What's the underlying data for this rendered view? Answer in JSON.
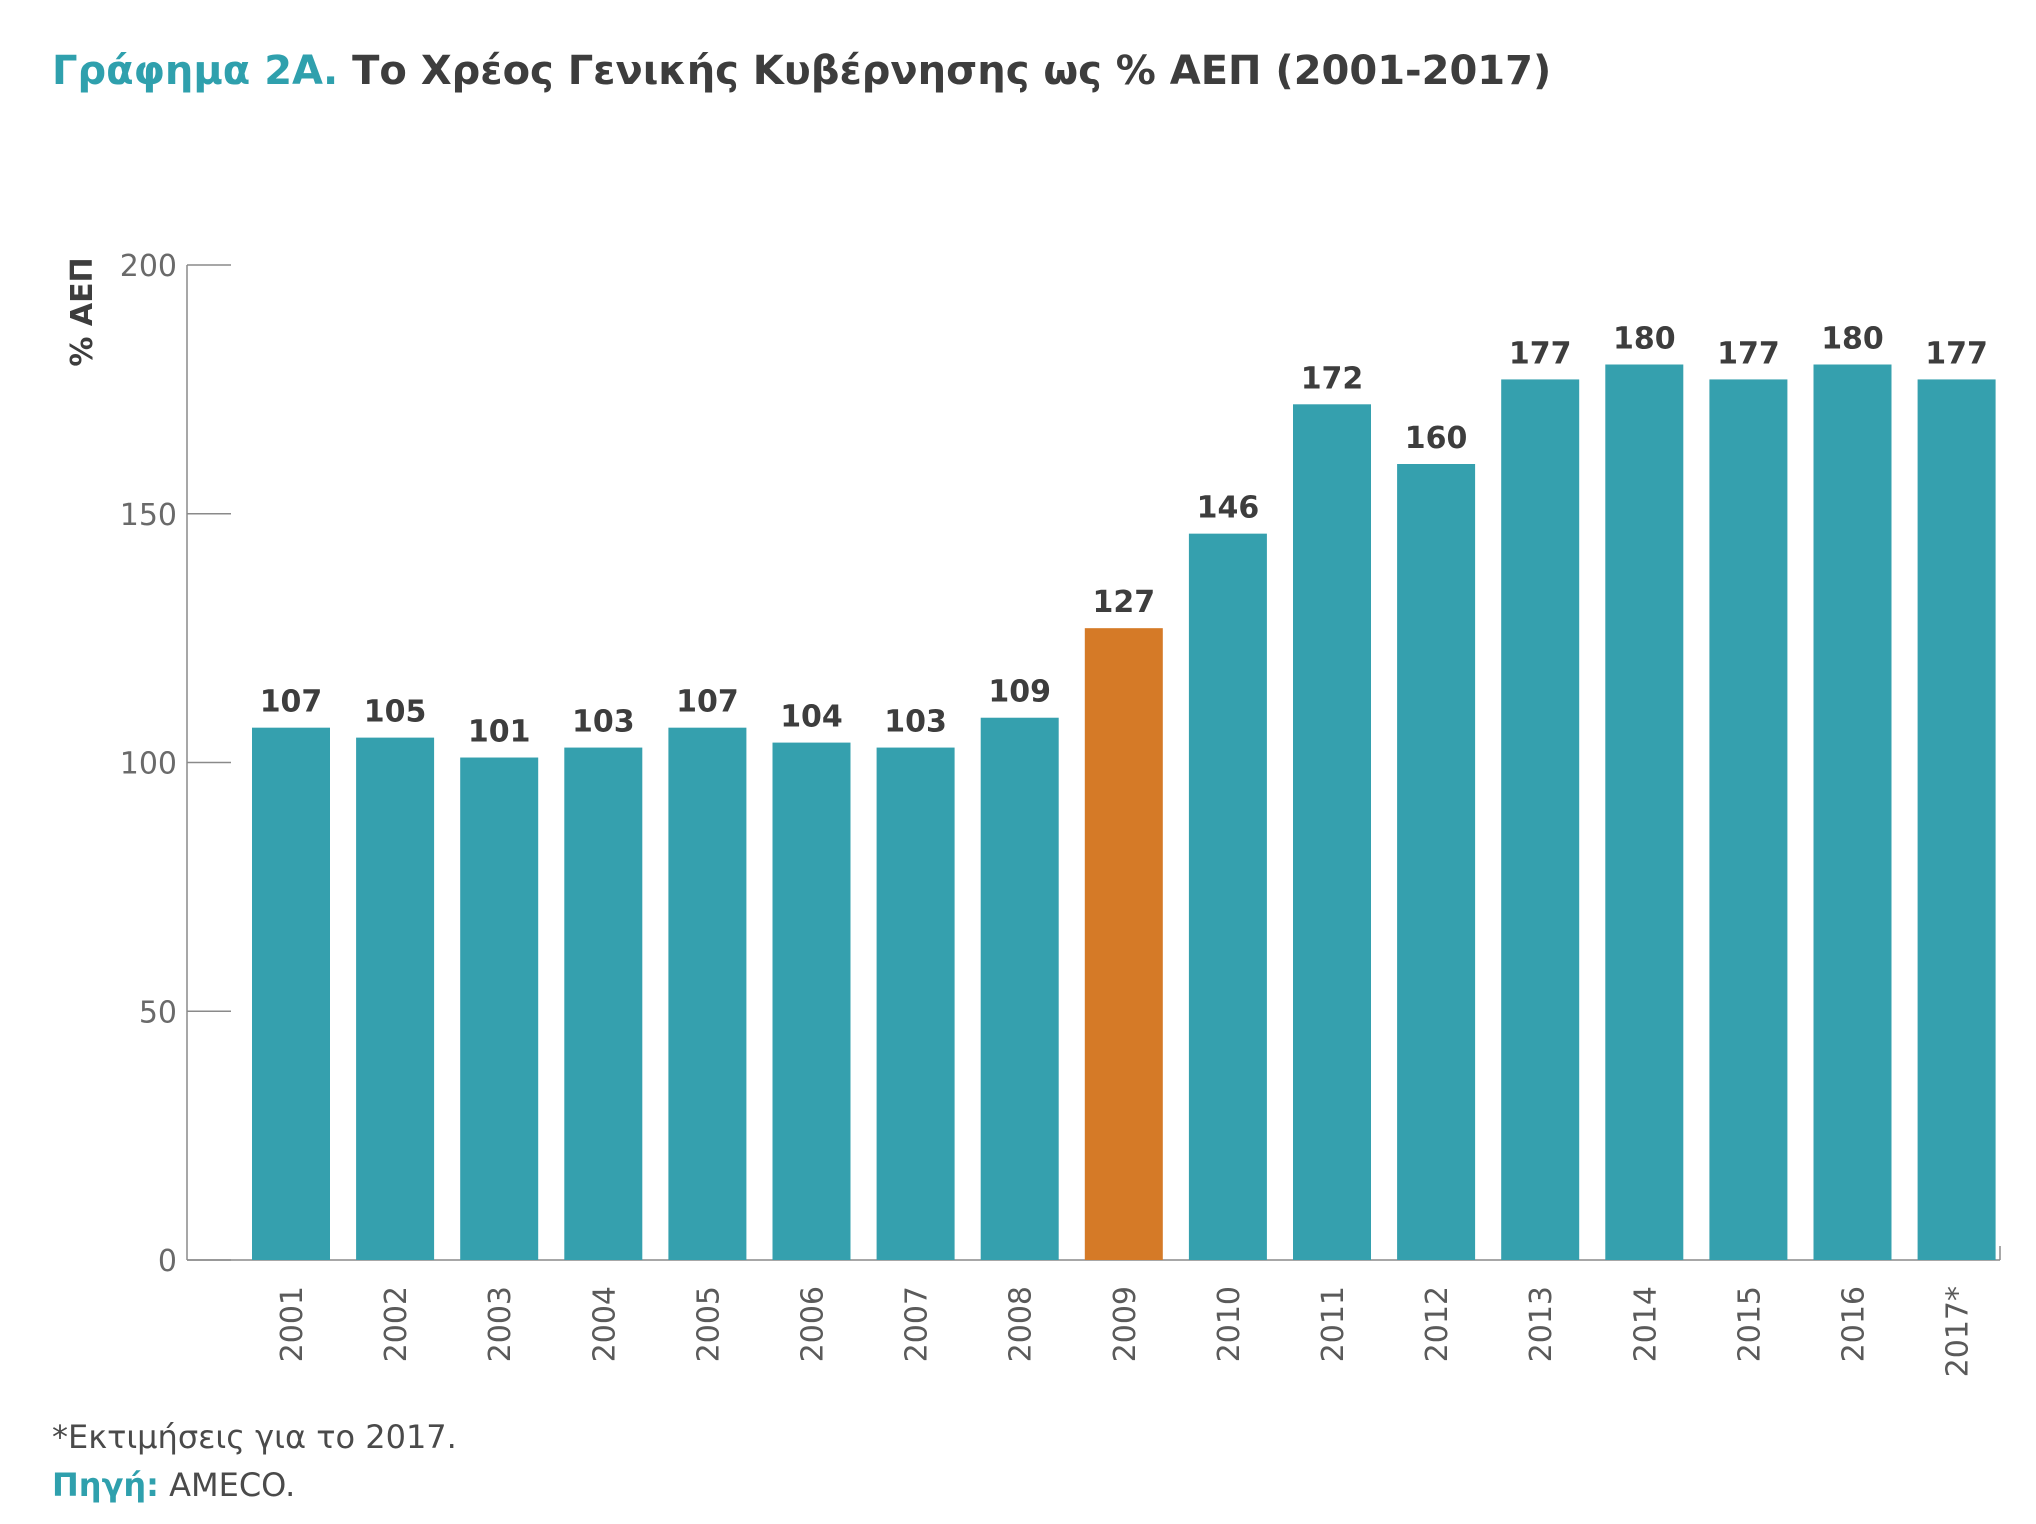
{
  "title": {
    "prefix": "Γράφημα 2Α.",
    "text": "Το Χρέος Γενικής Κυβέρνησης ως % ΑΕΠ (2001-2017)"
  },
  "footnote": "*Εκτιμήσεις για το 2017.",
  "source": {
    "label": "Πηγή:",
    "value": "AMECO."
  },
  "colors": {
    "bar": "#35a0ae",
    "highlight": "#d57a27",
    "axis": "#8a8a8a",
    "text": "#3d3d3d"
  },
  "chart_data": {
    "type": "bar",
    "title": "Το Χρέος Γενικής Κυβέρνησης ως % ΑΕΠ (2001-2017)",
    "ylabel": "% ΑΕΠ",
    "xlabel": "",
    "ylim": [
      0,
      200
    ],
    "yticks": [
      0,
      50,
      100,
      150,
      200
    ],
    "grid": false,
    "categories": [
      "2001",
      "2002",
      "2003",
      "2004",
      "2005",
      "2006",
      "2007",
      "2008",
      "2009",
      "2010",
      "2011",
      "2012",
      "2013",
      "2014",
      "2015",
      "2016",
      "2017*"
    ],
    "values": [
      107,
      105,
      101,
      103,
      107,
      104,
      103,
      109,
      127,
      146,
      172,
      160,
      177,
      180,
      177,
      180,
      177
    ],
    "highlight_category": "2009"
  }
}
